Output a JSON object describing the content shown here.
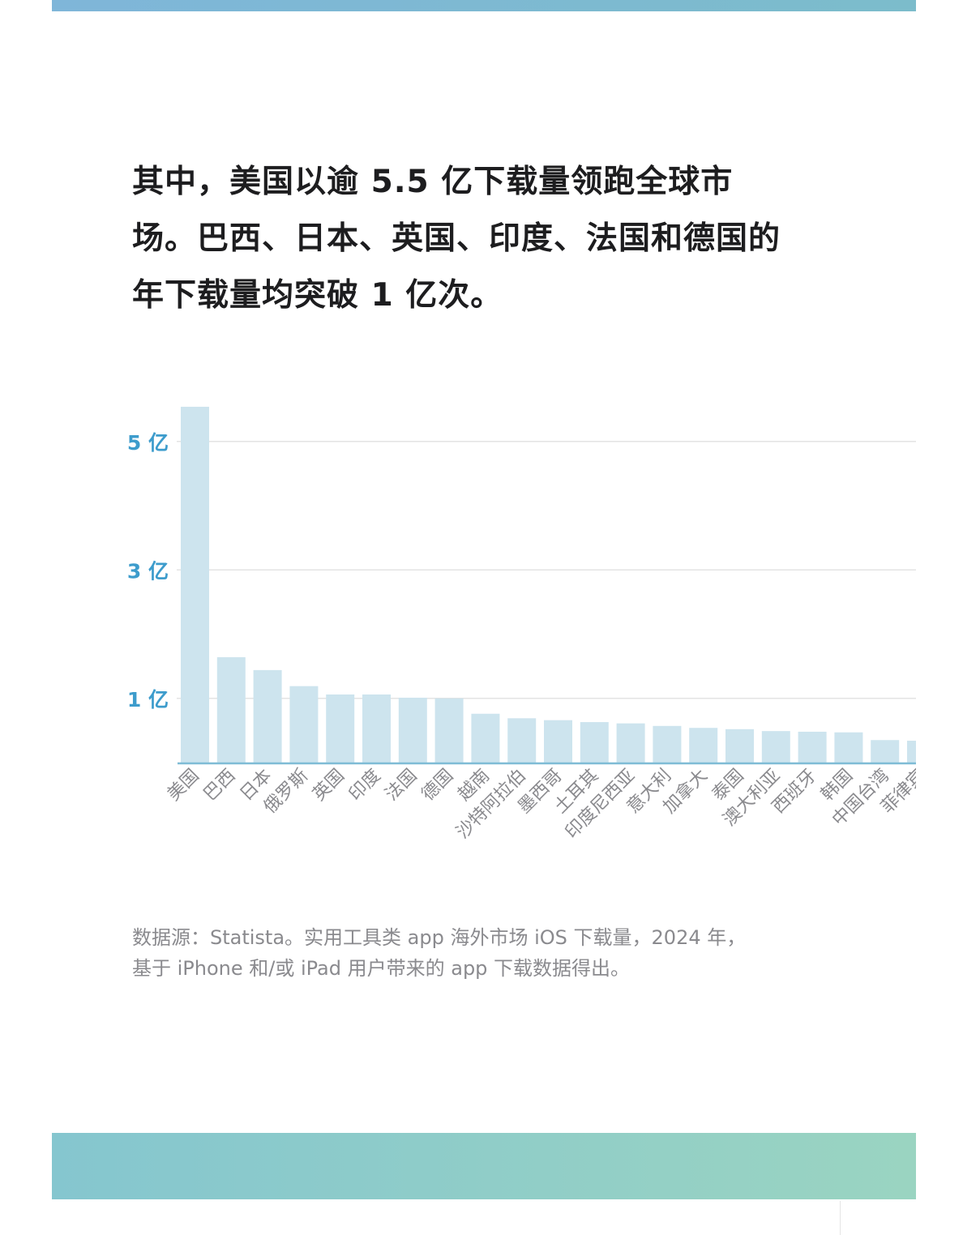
{
  "headline": "其中，美国以逾 5.5 亿下载量领跑全球市场。巴西、日本、英国、印度、法国和德国的年下载量均突破 1 亿次。",
  "source": "数据源：Statista。实用工具类 app 海外市场 iOS 下载量，2024 年，基于 iPhone 和/或 iPad 用户带来的 app 下载数据得出。",
  "colors": {
    "bar": "#cde4ee",
    "axis": "#7fbcd6",
    "tick_label": "#3d9ccc",
    "grid": "#e3e3e3"
  },
  "chart_data": {
    "type": "bar",
    "unit": "亿",
    "categories": [
      "美国",
      "巴西",
      "日本",
      "俄罗斯",
      "英国",
      "印度",
      "法国",
      "德国",
      "越南",
      "沙特阿拉伯",
      "墨西哥",
      "土耳其",
      "印度尼西亚",
      "意大利",
      "加拿大",
      "泰国",
      "澳大利亚",
      "西班牙",
      "韩国",
      "中国台湾",
      "菲律宾"
    ],
    "values": [
      5.54,
      1.64,
      1.44,
      1.19,
      1.06,
      1.06,
      1.01,
      1.0,
      0.76,
      0.69,
      0.66,
      0.63,
      0.61,
      0.57,
      0.54,
      0.52,
      0.49,
      0.48,
      0.47,
      0.35,
      0.34
    ],
    "yticks": [
      {
        "value": 1,
        "label": "1 亿"
      },
      {
        "value": 3,
        "label": "3 亿"
      },
      {
        "value": 5,
        "label": "5 亿"
      }
    ],
    "ylim": [
      0,
      5.6
    ],
    "grid": true
  }
}
